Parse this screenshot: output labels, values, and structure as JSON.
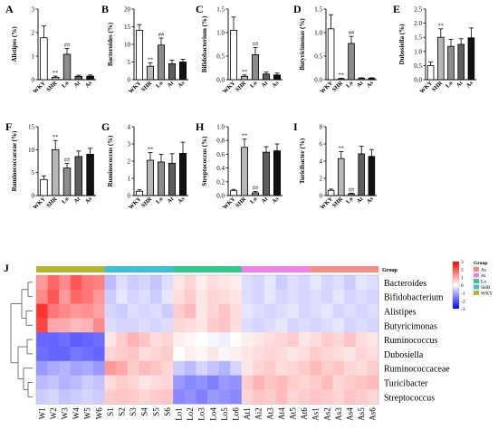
{
  "panel_colors": {
    "WKY": "#ffffff",
    "SHR": "#b8b8b8",
    "Lo": "#8c8c8c",
    "At": "#5e5e5e",
    "As": "#111111"
  },
  "chart_data": [
    {
      "type": "bar",
      "panel": "A",
      "ylabel": "Alistipes (%)",
      "categories": [
        "WKY",
        "SHR",
        "Lo",
        "At",
        "As"
      ],
      "values": [
        1.78,
        0.1,
        1.08,
        0.14,
        0.15
      ],
      "errors": [
        0.5,
        0.05,
        0.25,
        0.05,
        0.05
      ],
      "ylim": [
        0,
        3
      ],
      "yticks": [
        "0",
        "1",
        "2",
        "3"
      ],
      "marks": [
        "",
        "**",
        "##",
        "",
        ""
      ]
    },
    {
      "type": "bar",
      "panel": "B",
      "ylabel": "Bacteroides (%)",
      "categories": [
        "WKY",
        "SHR",
        "Lo",
        "At",
        "As"
      ],
      "values": [
        14,
        3.8,
        9.8,
        4.5,
        5.0
      ],
      "errors": [
        1.6,
        1.0,
        2.0,
        1.0,
        0.8
      ],
      "ylim": [
        0,
        20
      ],
      "yticks": [
        "0",
        "5",
        "10",
        "15",
        "20"
      ],
      "marks": [
        "",
        "**",
        "##",
        "",
        ""
      ]
    },
    {
      "type": "bar",
      "panel": "C",
      "ylabel": "Bifidobacterium (%)",
      "categories": [
        "WKY",
        "SHR",
        "Lo",
        "At",
        "As"
      ],
      "values": [
        1.05,
        0.07,
        0.53,
        0.12,
        0.1
      ],
      "errors": [
        0.28,
        0.03,
        0.15,
        0.04,
        0.04
      ],
      "ylim": [
        0,
        1.5
      ],
      "yticks": [
        "0.0",
        "0.5",
        "1.0",
        "1.5"
      ],
      "marks": [
        "",
        "**",
        "##",
        "",
        ""
      ]
    },
    {
      "type": "bar",
      "panel": "D",
      "ylabel": "Butyricimonas (%)",
      "categories": [
        "WKY",
        "SHR",
        "Lo",
        "At",
        "As"
      ],
      "values": [
        1.08,
        0.02,
        0.77,
        0.03,
        0.03
      ],
      "errors": [
        0.3,
        0.01,
        0.15,
        0.01,
        0.01
      ],
      "ylim": [
        0,
        1.5
      ],
      "yticks": [
        "0.0",
        "0.5",
        "1.0",
        "1.5"
      ],
      "marks": [
        "",
        "**",
        "##",
        "",
        ""
      ]
    },
    {
      "type": "bar",
      "panel": "E",
      "ylabel": "Dubosiella (%)",
      "categories": [
        "WKY",
        "SHR",
        "Lo",
        "At",
        "As"
      ],
      "values": [
        0.5,
        1.5,
        1.18,
        1.25,
        1.48
      ],
      "errors": [
        0.12,
        0.3,
        0.25,
        0.2,
        0.35
      ],
      "ylim": [
        0,
        2.5
      ],
      "yticks": [
        "0.0",
        "0.5",
        "1.0",
        "1.5",
        "2.0",
        "2.5"
      ],
      "marks": [
        "",
        "**",
        "",
        "",
        ""
      ]
    },
    {
      "type": "bar",
      "panel": "F",
      "ylabel": "Ruminococcaceae (%)",
      "categories": [
        "WKY",
        "SHR",
        "Lo",
        "At",
        "As"
      ],
      "values": [
        3.5,
        10.0,
        6.0,
        8.5,
        9.0
      ],
      "errors": [
        0.8,
        2.0,
        1.0,
        1.2,
        1.3
      ],
      "ylim": [
        0,
        15
      ],
      "yticks": [
        "0",
        "5",
        "10",
        "15"
      ],
      "marks": [
        "",
        "**",
        "##",
        "",
        ""
      ]
    },
    {
      "type": "bar",
      "panel": "G",
      "ylabel": "Ruminococcus (%)",
      "categories": [
        "WKY",
        "SHR",
        "Lo",
        "At",
        "As"
      ],
      "values": [
        0.25,
        2.05,
        1.95,
        1.88,
        2.45
      ],
      "errors": [
        0.08,
        0.45,
        0.45,
        0.55,
        0.65
      ],
      "ylim": [
        0,
        4
      ],
      "yticks": [
        "0",
        "1",
        "2",
        "3",
        "4"
      ],
      "marks": [
        "",
        "**",
        "",
        "",
        ""
      ]
    },
    {
      "type": "bar",
      "panel": "H",
      "ylabel": "Streptococcus (%)",
      "categories": [
        "WKY",
        "SHR",
        "Lo",
        "At",
        "As"
      ],
      "values": [
        0.07,
        0.7,
        0.04,
        0.63,
        0.65
      ],
      "errors": [
        0.02,
        0.12,
        0.02,
        0.08,
        0.1
      ],
      "ylim": [
        0,
        1.0
      ],
      "yticks": [
        "0.0",
        "0.2",
        "0.4",
        "0.6",
        "0.8",
        "1.0"
      ],
      "marks": [
        "",
        "**",
        "##",
        "",
        ""
      ]
    },
    {
      "type": "bar",
      "panel": "I",
      "ylabel": "Turicibacter (%)",
      "categories": [
        "WKY",
        "SHR",
        "Lo",
        "At",
        "As"
      ],
      "values": [
        0.6,
        4.3,
        0.2,
        4.85,
        4.55
      ],
      "errors": [
        0.15,
        0.8,
        0.08,
        0.9,
        0.8
      ],
      "ylim": [
        0,
        8
      ],
      "yticks": [
        "0",
        "2",
        "4",
        "6",
        "8"
      ],
      "marks": [
        "",
        "**",
        "##",
        "",
        ""
      ]
    },
    {
      "type": "heatmap",
      "panel": "J",
      "rows": [
        "Bacteroides",
        "Bifidobacterium",
        "Alistipes",
        "Butyricimonas",
        "Ruminococcus",
        "Dubosiella",
        "Ruminococcaceae",
        "Turicibacter",
        "Streptococcus"
      ],
      "columns": [
        "W1",
        "W2",
        "W3",
        "W4",
        "W5",
        "W6",
        "S1",
        "S2",
        "S3",
        "S4",
        "S5",
        "S6",
        "Lo1",
        "Lo2",
        "Lo3",
        "Lo4",
        "Lo5",
        "Lo6",
        "At1",
        "Ai2",
        "At3",
        "At4",
        "At5",
        "At6",
        "As1",
        "As2",
        "As3",
        "As4",
        "As5",
        "As6"
      ],
      "column_groups": [
        "WKY",
        "WKY",
        "WKY",
        "WKY",
        "WKY",
        "WKY",
        "SHR",
        "SHR",
        "SHR",
        "SHR",
        "SHR",
        "SHR",
        "Lo",
        "Lo",
        "Lo",
        "Lo",
        "Lo",
        "Lo",
        "At",
        "At",
        "At",
        "At",
        "At",
        "At",
        "As",
        "As",
        "As",
        "As",
        "As",
        "As"
      ],
      "values": [
        [
          1.2,
          1.8,
          1.4,
          2.0,
          1.6,
          1.5,
          -0.8,
          -0.4,
          -0.6,
          -0.5,
          -0.7,
          -0.4,
          0.3,
          0.5,
          0.2,
          0.4,
          0.3,
          0.2,
          -0.4,
          -0.5,
          -0.3,
          -0.6,
          -0.4,
          -0.5,
          -0.3,
          -0.5,
          -0.4,
          -0.6,
          -0.3,
          -0.4
        ],
        [
          1.4,
          2.0,
          1.2,
          1.8,
          1.6,
          1.2,
          -0.6,
          -0.3,
          -0.5,
          -0.4,
          -0.6,
          -0.3,
          0.4,
          0.6,
          0.3,
          0.5,
          0.4,
          0.3,
          -0.4,
          -0.5,
          -0.3,
          -0.5,
          -0.4,
          -0.5,
          -0.4,
          -0.5,
          -0.3,
          -0.5,
          -0.4,
          -0.5
        ],
        [
          2.4,
          1.6,
          1.4,
          1.2,
          1.3,
          1.1,
          -0.5,
          -0.6,
          -0.4,
          -0.5,
          -0.4,
          -0.6,
          0.6,
          0.8,
          0.3,
          0.5,
          0.7,
          0.4,
          -0.3,
          -0.4,
          -0.5,
          -0.4,
          -0.3,
          -0.5,
          -0.4,
          -0.3,
          -0.5,
          -0.4,
          -0.5,
          -0.4
        ],
        [
          2.2,
          1.0,
          1.0,
          0.8,
          0.9,
          1.4,
          -0.4,
          -0.5,
          -0.5,
          -0.4,
          -0.5,
          -0.4,
          0.5,
          0.4,
          0.3,
          0.6,
          0.7,
          0.4,
          -0.4,
          -0.5,
          -0.4,
          -0.3,
          -0.5,
          -0.4,
          -0.5,
          -0.4,
          -0.3,
          -0.5,
          -0.4,
          -0.5
        ],
        [
          -1.8,
          -1.8,
          -1.7,
          -1.9,
          -1.8,
          -1.7,
          0.3,
          0.6,
          0.9,
          0.7,
          0.4,
          0.5,
          0.2,
          0.1,
          0.0,
          -0.1,
          -0.2,
          0.0,
          0.2,
          0.3,
          0.4,
          0.5,
          0.6,
          0.3,
          0.4,
          0.6,
          0.5,
          0.7,
          0.4,
          0.3
        ],
        [
          -1.7,
          -1.8,
          -1.8,
          -1.6,
          -1.7,
          -1.8,
          0.5,
          0.6,
          0.7,
          0.4,
          0.5,
          0.6,
          0.0,
          0.2,
          0.1,
          0.3,
          -0.1,
          0.2,
          0.3,
          0.4,
          0.5,
          0.4,
          0.3,
          0.4,
          0.6,
          0.5,
          0.4,
          0.3,
          0.5,
          0.4
        ],
        [
          -1.2,
          -1.0,
          -0.9,
          -1.1,
          -1.0,
          -1.2,
          1.2,
          1.0,
          0.6,
          0.8,
          0.7,
          0.5,
          -0.6,
          -0.8,
          -0.5,
          -0.7,
          -0.9,
          -0.5,
          0.3,
          0.5,
          0.6,
          0.4,
          0.5,
          0.6,
          0.8,
          0.6,
          0.7,
          0.5,
          0.4,
          0.6
        ],
        [
          -0.8,
          -0.7,
          -0.9,
          -0.8,
          -0.6,
          -0.7,
          0.4,
          0.6,
          0.5,
          0.3,
          0.4,
          0.5,
          -1.2,
          -1.4,
          -1.3,
          -1.5,
          -1.2,
          -1.3,
          0.6,
          0.9,
          0.7,
          0.8,
          0.6,
          0.5,
          0.6,
          0.8,
          0.5,
          0.6,
          0.7,
          0.8
        ],
        [
          -0.6,
          -0.5,
          -0.7,
          -0.6,
          -0.5,
          -0.6,
          0.6,
          0.7,
          0.6,
          0.5,
          0.6,
          0.7,
          -1.4,
          -1.3,
          -1.5,
          -1.2,
          -1.3,
          -1.4,
          0.5,
          0.7,
          0.6,
          0.8,
          0.5,
          0.6,
          0.7,
          0.6,
          0.5,
          0.7,
          0.6,
          0.5
        ]
      ],
      "scale": {
        "min": -3,
        "max": 3,
        "ticks": [
          "3",
          "2",
          "1",
          "0",
          "-1",
          "-2",
          "-3"
        ]
      },
      "legend_title": "Group",
      "group_legend": [
        "As",
        "At",
        "Lo",
        "SHR",
        "WKY"
      ],
      "group_colors": {
        "WKY": "#b5b62b",
        "SHR": "#3dbfd6",
        "Lo": "#2fc98e",
        "At": "#ee82e6",
        "As": "#f28c86"
      }
    }
  ],
  "heatmap_header_label": "Group"
}
